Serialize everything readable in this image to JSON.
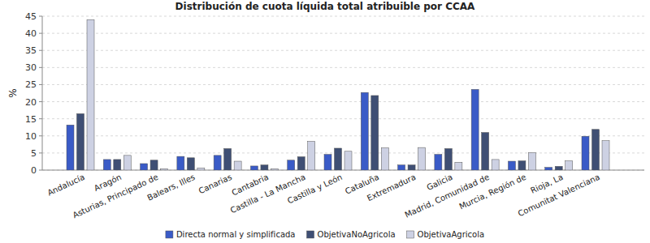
{
  "chart_data": {
    "type": "bar",
    "title": "Distribución de cuota líquida total atribuible por CCAA",
    "y_label": "%",
    "categories": [
      "Andalucía",
      "Aragón",
      "Asturias, Principado de",
      "Balears, Illes",
      "Canarias",
      "Cantabria",
      "Castilla - La Mancha",
      "Castilla y León",
      "Cataluña",
      "Extremadura",
      "Galicia",
      "Madrid, Comunidad de",
      "Murcia, Región de",
      "Rioja, La",
      "Comunitat Valenciana"
    ],
    "series": [
      {
        "name": "Directa normal y simplificada",
        "color": "#3a5bc7",
        "values": [
          13.2,
          3.1,
          1.9,
          4.0,
          4.3,
          1.2,
          2.9,
          4.6,
          22.7,
          1.5,
          4.6,
          23.6,
          2.6,
          0.8,
          9.9
        ]
      },
      {
        "name": "ObjetivaNoAgricola",
        "color": "#3f4f74",
        "values": [
          16.5,
          3.1,
          2.9,
          3.6,
          6.3,
          1.5,
          3.9,
          6.4,
          21.8,
          1.5,
          6.3,
          11.0,
          2.7,
          1.1,
          11.9
        ]
      },
      {
        "name": "ObjetivaAgricola",
        "color": "#cdd1e3",
        "values": [
          44.0,
          4.3,
          0.4,
          0.6,
          2.6,
          0.4,
          8.4,
          5.5,
          6.5,
          6.6,
          2.3,
          3.1,
          5.1,
          2.7,
          8.6
        ]
      }
    ],
    "ylim": [
      0,
      45
    ],
    "yticks": [
      0,
      5,
      10,
      15,
      20,
      25,
      30,
      35,
      40,
      45
    ],
    "grid": true,
    "legend": "bottom"
  }
}
